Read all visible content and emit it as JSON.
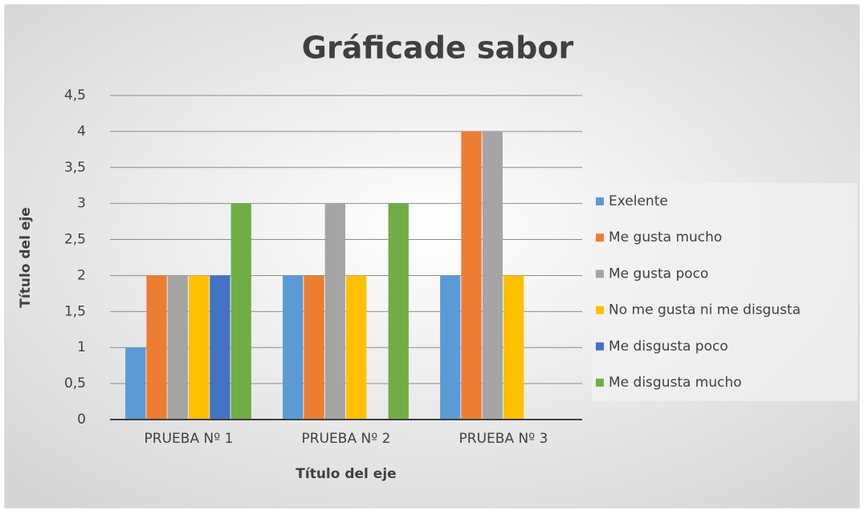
{
  "chart_data": {
    "type": "bar",
    "title": "Gráficade sabor",
    "x_label": "Título del eje",
    "y_label": "Título del eje",
    "categories": [
      "PRUEBA Nº 1",
      "PRUEBA Nº 2",
      "PRUEBA Nº 3"
    ],
    "series": [
      {
        "name": "Exelente",
        "color": "#5b9bd5",
        "values": [
          1,
          2,
          2
        ]
      },
      {
        "name": "Me gusta mucho",
        "color": "#ed7d31",
        "values": [
          2,
          2,
          4
        ]
      },
      {
        "name": "Me gusta poco",
        "color": "#a5a5a5",
        "values": [
          2,
          3,
          4
        ]
      },
      {
        "name": "No me gusta ni me disgusta",
        "color": "#ffc000",
        "values": [
          2,
          2,
          2
        ]
      },
      {
        "name": "Me disgusta poco",
        "color": "#4472c4",
        "values": [
          2,
          0,
          0
        ]
      },
      {
        "name": "Me disgusta mucho",
        "color": "#70ad47",
        "values": [
          3,
          3,
          0
        ]
      }
    ],
    "ylim": [
      0,
      4.5
    ],
    "yticks": [
      0,
      {
        "value": 0.5,
        "label": "0,5"
      },
      1,
      {
        "value": 1.5,
        "label": "1,5"
      },
      2,
      {
        "value": 2.5,
        "label": "2,5"
      },
      3,
      {
        "value": 3.5,
        "label": "3,5"
      },
      4,
      {
        "value": 4.5,
        "label": "4,5"
      }
    ],
    "grid": true,
    "legend": "right"
  }
}
